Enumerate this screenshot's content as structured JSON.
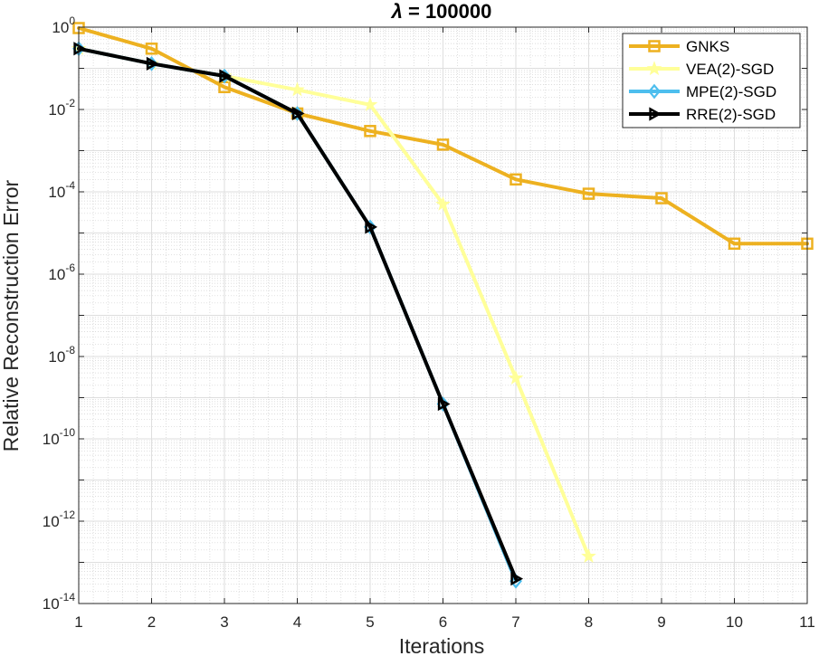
{
  "chart_data": {
    "type": "line",
    "title_symbol": "λ",
    "title_rest": " = 100000",
    "xlabel": "Iterations",
    "ylabel": "Relative Reconstruction Error",
    "xlim": [
      1,
      11
    ],
    "ylim": [
      1e-14,
      1
    ],
    "yscale": "log",
    "grid": true,
    "minor_grid": true,
    "legend_position": "top-right",
    "x_ticks": [
      "1",
      "2",
      "3",
      "4",
      "5",
      "6",
      "7",
      "8",
      "9",
      "10",
      "11"
    ],
    "y_ticks": [
      {
        "base": "10",
        "exp": "0",
        "value": 1
      },
      {
        "base": "10",
        "exp": "-2",
        "value": 0.01
      },
      {
        "base": "10",
        "exp": "-4",
        "value": 0.0001
      },
      {
        "base": "10",
        "exp": "-6",
        "value": 1e-06
      },
      {
        "base": "10",
        "exp": "-8",
        "value": 1e-08
      },
      {
        "base": "10",
        "exp": "-10",
        "value": 1e-10
      },
      {
        "base": "10",
        "exp": "-12",
        "value": 1e-12
      },
      {
        "base": "10",
        "exp": "-14",
        "value": 1e-14
      }
    ],
    "series": [
      {
        "name": "GNKS",
        "color": "#EDB120",
        "marker": "square",
        "x": [
          1,
          2,
          3,
          4,
          5,
          6,
          7,
          8,
          9,
          10,
          11
        ],
        "y": [
          0.95,
          0.3,
          0.035,
          0.008,
          0.003,
          0.0014,
          0.0002,
          9e-05,
          7e-05,
          5.5e-06,
          5.5e-06
        ]
      },
      {
        "name": "VEA(2)-SGD",
        "color": "#FFFF99",
        "marker": "star",
        "x": [
          1,
          2,
          3,
          4,
          5,
          6,
          7,
          8
        ],
        "y": [
          0.3,
          0.13,
          0.065,
          0.03,
          0.013,
          5e-05,
          3e-09,
          1.4e-13
        ]
      },
      {
        "name": "MPE(2)-SGD",
        "color": "#4DBEEE",
        "marker": "diamond",
        "x": [
          1,
          2,
          3,
          4,
          5,
          6,
          7
        ],
        "y": [
          0.3,
          0.13,
          0.065,
          0.008,
          1.4e-05,
          7e-10,
          3.5e-14
        ]
      },
      {
        "name": "RRE(2)-SGD",
        "color": "#000000",
        "marker": "triangle-right",
        "x": [
          1,
          2,
          3,
          4,
          5,
          6,
          7
        ],
        "y": [
          0.3,
          0.13,
          0.065,
          0.008,
          1.4e-05,
          7e-10,
          4e-14
        ]
      }
    ]
  }
}
